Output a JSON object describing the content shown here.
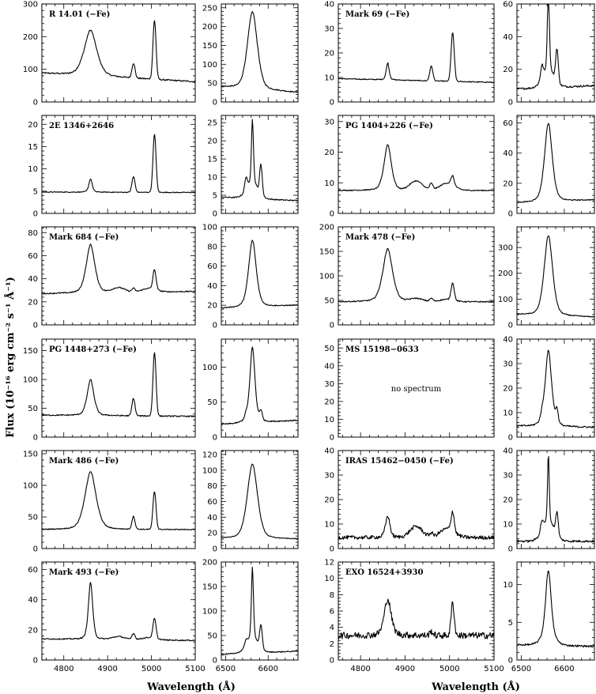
{
  "chart_data": {
    "type": "line",
    "ylabel": "Flux (10⁻¹⁶ erg cm⁻² s⁻¹ Å⁻¹)",
    "xlabels": [
      "Wavelength (Å)",
      "Wavelength (Å)"
    ],
    "blue_xlim": [
      4750,
      5100
    ],
    "blue_xticks": [
      4800,
      4900,
      5000,
      5100
    ],
    "red_xlim": [
      6490,
      6670
    ],
    "red_xticks": [
      6500,
      6600
    ],
    "lines": {
      "blue": [
        {
          "center": 4861,
          "sigma": 12
        },
        {
          "center": 4959,
          "sigma": 3.5
        },
        {
          "center": 5007,
          "sigma": 3.5
        }
      ],
      "red": [
        {
          "center": 6563,
          "sigma": 10
        },
        {
          "center": 6548,
          "sigma": 3
        },
        {
          "center": 6583,
          "sigma": 3
        }
      ]
    },
    "objects": [
      {
        "label": "R 14.01 (−Fe)",
        "spectrum": true,
        "blue_ylim": [
          0,
          300
        ],
        "blue_yticks": [
          0,
          100,
          200,
          300
        ],
        "blue": {
          "cont": [
            88,
            62
          ],
          "hb": 140,
          "hbw": 1.3,
          "o3_4959": 45,
          "o3_5007": 180,
          "fe": 0,
          "noise": 0.6
        },
        "red_ylim": [
          0,
          260
        ],
        "red_yticks": [
          0,
          50,
          100,
          150,
          200,
          250
        ],
        "red": {
          "cont": [
            40,
            25
          ],
          "ha": 190,
          "haw": 1.2,
          "n2a": 0,
          "n2b": 0,
          "wing": 15,
          "noise": 0.5
        }
      },
      {
        "label": "Mark 69 (−Fe)",
        "spectrum": true,
        "blue_ylim": [
          0,
          40
        ],
        "blue_yticks": [
          0,
          10,
          20,
          30,
          40
        ],
        "blue": {
          "cont": [
            9.5,
            8
          ],
          "hb": 7,
          "hbw": 0.3,
          "o3_4959": 6,
          "o3_5007": 20,
          "fe": 0,
          "noise": 0.4
        },
        "red_ylim": [
          0,
          60
        ],
        "red_yticks": [
          0,
          20,
          40,
          60
        ],
        "red": {
          "cont": [
            8,
            10
          ],
          "ha": 50,
          "haw": 0.25,
          "n2a": 8,
          "n2b": 20,
          "wing": 10,
          "noise": 0.8
        }
      },
      {
        "label": "2E 1346+2646",
        "spectrum": true,
        "blue_ylim": [
          0,
          22
        ],
        "blue_yticks": [
          0,
          5,
          10,
          15,
          20
        ],
        "blue": {
          "cont": [
            4.8,
            4.7
          ],
          "hb": 3,
          "hbw": 0.35,
          "o3_4959": 3.5,
          "o3_5007": 13,
          "fe": 0,
          "noise": 0.35
        },
        "red_ylim": [
          0,
          27
        ],
        "red_yticks": [
          0,
          5,
          10,
          15,
          20,
          25
        ],
        "red": {
          "cont": [
            4.5,
            3.5
          ],
          "ha": 18,
          "haw": 0.25,
          "n2a": 3.5,
          "n2b": 8,
          "wing": 4,
          "noise": 0.5
        }
      },
      {
        "label": "PG 1404+226 (−Fe)",
        "spectrum": true,
        "blue_ylim": [
          0,
          32
        ],
        "blue_yticks": [
          0,
          10,
          20,
          30
        ],
        "blue": {
          "cont": [
            7.5,
            7.5
          ],
          "hb": 15,
          "hbw": 0.75,
          "o3_4959": 2,
          "o3_5007": 3,
          "fe": 3,
          "noise": 0.45
        },
        "red_ylim": [
          0,
          65
        ],
        "red_yticks": [
          0,
          20,
          40,
          60
        ],
        "red": {
          "cont": [
            7,
            9
          ],
          "ha": 47,
          "haw": 0.9,
          "n2a": 0,
          "n2b": 0,
          "wing": 5,
          "noise": 0.4
        }
      },
      {
        "label": "Mark 684 (−Fe)",
        "spectrum": true,
        "blue_ylim": [
          0,
          85
        ],
        "blue_yticks": [
          0,
          20,
          40,
          60,
          80
        ],
        "blue": {
          "cont": [
            27,
            29
          ],
          "hb": 42,
          "hbw": 0.9,
          "o3_4959": 3,
          "o3_5007": 17,
          "fe": 4,
          "noise": 0.5
        },
        "red_ylim": [
          0,
          100
        ],
        "red_yticks": [
          0,
          20,
          40,
          60,
          80,
          100
        ],
        "red": {
          "cont": [
            17,
            20
          ],
          "ha": 62,
          "haw": 0.9,
          "n2a": 0,
          "n2b": 0,
          "wing": 6,
          "noise": 0.4
        }
      },
      {
        "label": "Mark 478 (−Fe)",
        "spectrum": true,
        "blue_ylim": [
          0,
          200
        ],
        "blue_yticks": [
          0,
          50,
          100,
          150,
          200
        ],
        "blue": {
          "cont": [
            47,
            47
          ],
          "hb": 108,
          "hbw": 1.0,
          "o3_4959": 6,
          "o3_5007": 35,
          "fe": 6,
          "noise": 0.5
        },
        "red_ylim": [
          0,
          380
        ],
        "red_yticks": [
          0,
          100,
          200,
          300
        ],
        "red": {
          "cont": [
            40,
            30
          ],
          "ha": 285,
          "haw": 1.0,
          "n2a": 0,
          "n2b": 0,
          "wing": 25,
          "noise": 0.4
        }
      },
      {
        "label": "PG 1448+273 (−Fe)",
        "spectrum": true,
        "blue_ylim": [
          0,
          170
        ],
        "blue_yticks": [
          0,
          50,
          100,
          150
        ],
        "blue": {
          "cont": [
            38,
            36
          ],
          "hb": 62,
          "hbw": 0.7,
          "o3_4959": 30,
          "o3_5007": 110,
          "fe": 0,
          "noise": 0.5
        },
        "red_ylim": [
          0,
          140
        ],
        "red_yticks": [
          0,
          50,
          100
        ],
        "red": {
          "cont": [
            18,
            24
          ],
          "ha": 100,
          "haw": 0.6,
          "n2a": 6,
          "n2b": 12,
          "wing": 8,
          "noise": 0.5
        }
      },
      {
        "label": "MS 15198−0633",
        "spectrum": false,
        "note": "no spectrum",
        "blue_ylim": [
          0,
          55
        ],
        "blue_yticks": [
          0,
          10,
          20,
          30,
          40,
          50
        ],
        "red_ylim": [
          0,
          40
        ],
        "red_yticks": [
          0,
          10,
          20,
          30,
          40
        ],
        "red": {
          "cont": [
            4.5,
            4
          ],
          "ha": 28,
          "haw": 0.75,
          "n2a": 2,
          "n2b": 5,
          "wing": 3,
          "noise": 0.7
        }
      },
      {
        "label": "Mark 486 (−Fe)",
        "spectrum": true,
        "blue_ylim": [
          0,
          155
        ],
        "blue_yticks": [
          0,
          50,
          100,
          150
        ],
        "blue": {
          "cont": [
            30,
            30
          ],
          "hb": 92,
          "hbw": 1.15,
          "o3_4959": 20,
          "o3_5007": 60,
          "fe": 0,
          "noise": 0.4
        },
        "red_ylim": [
          0,
          125
        ],
        "red_yticks": [
          0,
          20,
          40,
          60,
          80,
          100,
          120
        ],
        "red": {
          "cont": [
            13,
            12
          ],
          "ha": 90,
          "haw": 1.25,
          "n2a": 0,
          "n2b": 0,
          "wing": 5,
          "noise": 0.3
        }
      },
      {
        "label": "IRAS 15462−0450 (−Fe)",
        "spectrum": true,
        "blue_ylim": [
          0,
          40
        ],
        "blue_yticks": [
          0,
          10,
          20,
          30,
          40
        ],
        "blue": {
          "cont": [
            4.5,
            4.5
          ],
          "hb": 9,
          "hbw": 0.45,
          "o3_4959": 1.5,
          "o3_5007": 8,
          "fe": 4.5,
          "noise": 1.6
        },
        "red_ylim": [
          0,
          40
        ],
        "red_yticks": [
          0,
          10,
          20,
          30,
          40
        ],
        "red": {
          "cont": [
            3,
            3
          ],
          "ha": 28,
          "haw": 0.2,
          "n2a": 4,
          "n2b": 9,
          "wing": 8,
          "noise": 0.9
        }
      },
      {
        "label": "Mark 493 (−Fe)",
        "spectrum": true,
        "blue_ylim": [
          0,
          65
        ],
        "blue_yticks": [
          0,
          20,
          40,
          60
        ],
        "blue": {
          "cont": [
            14,
            13
          ],
          "hb": 38,
          "hbw": 0.45,
          "o3_4959": 4,
          "o3_5007": 13,
          "fe": 2,
          "noise": 0.5
        },
        "red_ylim": [
          0,
          200
        ],
        "red_yticks": [
          0,
          50,
          100,
          150,
          200
        ],
        "red": {
          "cont": [
            12,
            18
          ],
          "ha": 145,
          "haw": 0.25,
          "n2a": 10,
          "n2b": 45,
          "wing": 30,
          "noise": 0.4
        }
      },
      {
        "label": "EXO 16524+3930",
        "spectrum": true,
        "blue_ylim": [
          0,
          12
        ],
        "blue_yticks": [
          0,
          2,
          4,
          6,
          8,
          10,
          12
        ],
        "blue": {
          "cont": [
            3,
            3
          ],
          "hb": 4.5,
          "hbw": 0.7,
          "o3_4959": 0.5,
          "o3_5007": 4,
          "fe": 0,
          "noise": 2.8
        },
        "red_ylim": [
          0,
          13
        ],
        "red_yticks": [
          0,
          5,
          10
        ],
        "red": {
          "cont": [
            2,
            1.8
          ],
          "ha": 8.5,
          "haw": 0.65,
          "n2a": 0,
          "n2b": 0,
          "wing": 1.5,
          "noise": 0.8
        }
      }
    ]
  }
}
